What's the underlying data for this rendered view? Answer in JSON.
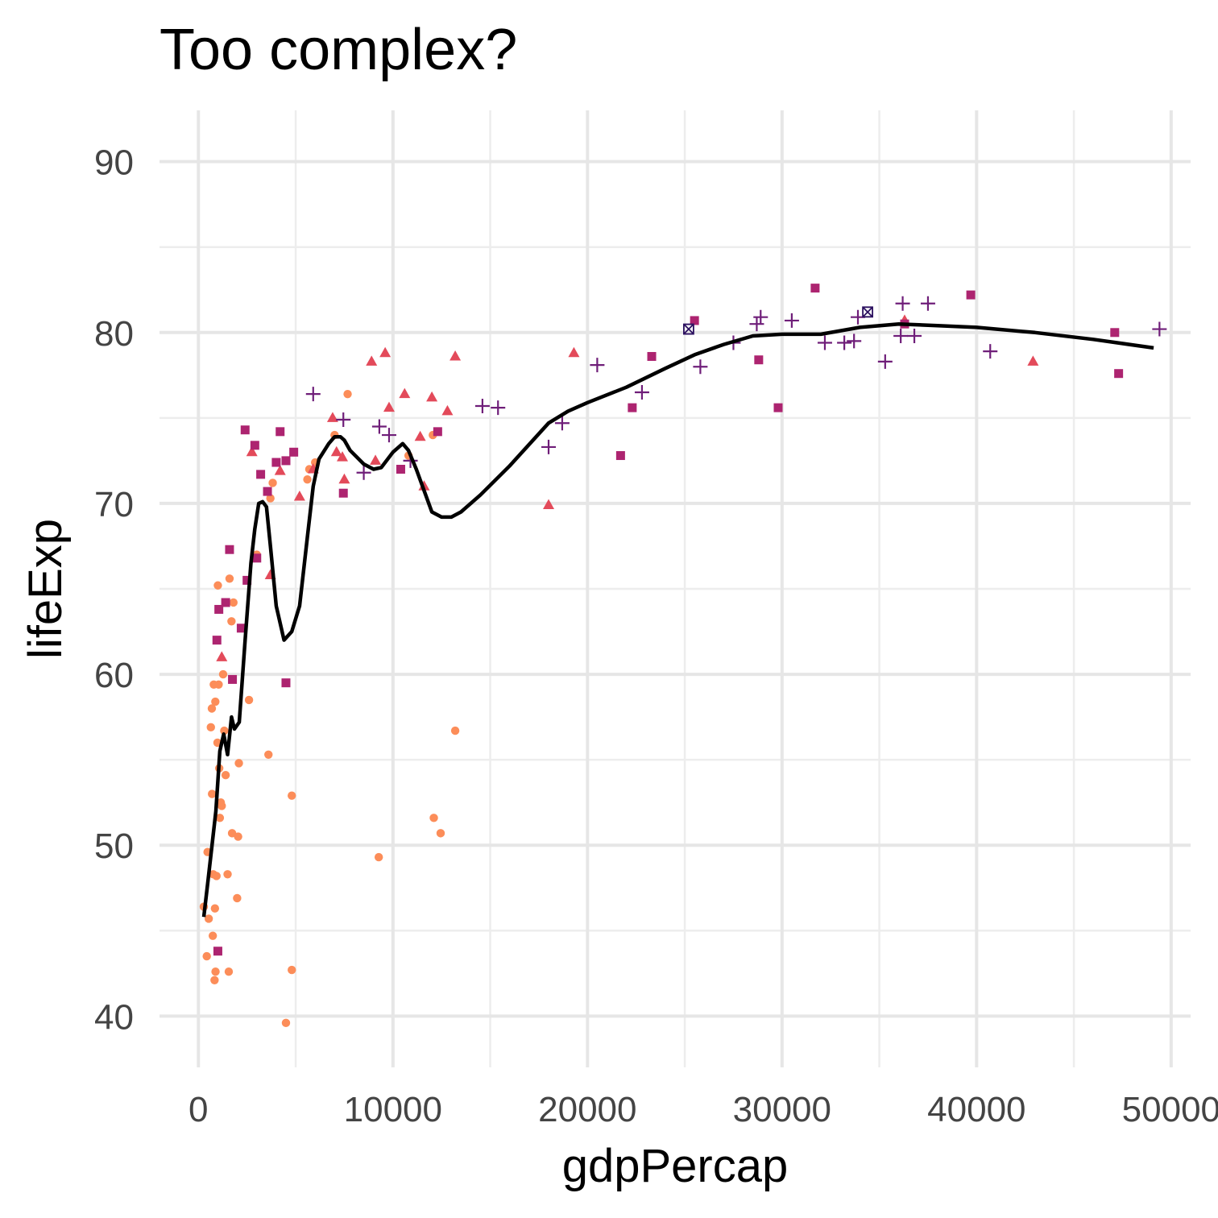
{
  "chart_data": {
    "type": "scatter",
    "title": "Too complex?",
    "xlabel": "gdpPercap",
    "ylabel": "lifeExp",
    "xlim": [
      -2000,
      51000
    ],
    "ylim": [
      37,
      93
    ],
    "x_ticks": [
      0,
      10000,
      20000,
      30000,
      40000,
      50000
    ],
    "x_tick_labels": [
      "0",
      "10000",
      "20000",
      "30000",
      "40000",
      "50000"
    ],
    "y_ticks": [
      40,
      50,
      60,
      70,
      80,
      90
    ],
    "y_tick_labels": [
      "40",
      "50",
      "60",
      "70",
      "80",
      "90"
    ],
    "grid": true,
    "legend": "none",
    "colors": {
      "circle": "#fc8d59",
      "triangle": "#e34a5a",
      "square": "#ad2470",
      "plus": "#6f1e79",
      "boxx": "#2c1160",
      "trend": "#000000"
    },
    "series": [
      {
        "marker": "circle",
        "points": [
          [
            277,
            46.4
          ],
          [
            430,
            43.5
          ],
          [
            470,
            49.6
          ],
          [
            530,
            45.7
          ],
          [
            640,
            56.9
          ],
          [
            690,
            58.0
          ],
          [
            700,
            53.0
          ],
          [
            740,
            44.7
          ],
          [
            760,
            48.3
          ],
          [
            790,
            59.4
          ],
          [
            830,
            42.1
          ],
          [
            850,
            46.3
          ],
          [
            870,
            58.4
          ],
          [
            880,
            42.6
          ],
          [
            930,
            48.2
          ],
          [
            980,
            56.0
          ],
          [
            1000,
            65.2
          ],
          [
            1040,
            59.4
          ],
          [
            1070,
            54.5
          ],
          [
            1100,
            51.6
          ],
          [
            1150,
            52.5
          ],
          [
            1200,
            52.3
          ],
          [
            1270,
            60.0
          ],
          [
            1330,
            56.7
          ],
          [
            1400,
            54.1
          ],
          [
            1500,
            48.3
          ],
          [
            1560,
            42.6
          ],
          [
            1600,
            65.6
          ],
          [
            1700,
            63.1
          ],
          [
            1730,
            50.7
          ],
          [
            1800,
            64.2
          ],
          [
            1990,
            46.9
          ],
          [
            2040,
            50.5
          ],
          [
            2080,
            54.8
          ],
          [
            2600,
            58.5
          ],
          [
            3000,
            67.0
          ],
          [
            3600,
            55.3
          ],
          [
            3700,
            70.3
          ],
          [
            3820,
            71.2
          ],
          [
            4500,
            39.6
          ],
          [
            4800,
            42.7
          ],
          [
            4800,
            52.9
          ],
          [
            5600,
            71.4
          ],
          [
            5700,
            72.0
          ],
          [
            6000,
            72.4
          ],
          [
            7000,
            74.0
          ],
          [
            7670,
            76.4
          ],
          [
            9270,
            49.3
          ],
          [
            10800,
            72.8
          ],
          [
            12050,
            74.0
          ],
          [
            12100,
            51.6
          ],
          [
            12450,
            50.7
          ],
          [
            13200,
            56.7
          ]
        ]
      },
      {
        "marker": "triangle",
        "points": [
          [
            1200,
            61.0
          ],
          [
            2750,
            73.0
          ],
          [
            3700,
            65.8
          ],
          [
            4200,
            71.9
          ],
          [
            5200,
            70.4
          ],
          [
            5900,
            72.0
          ],
          [
            6900,
            75.0
          ],
          [
            7100,
            73.0
          ],
          [
            7400,
            72.7
          ],
          [
            7500,
            71.4
          ],
          [
            8900,
            78.3
          ],
          [
            9100,
            72.5
          ],
          [
            9600,
            78.8
          ],
          [
            9800,
            75.6
          ],
          [
            10600,
            76.4
          ],
          [
            11400,
            73.9
          ],
          [
            11600,
            71.0
          ],
          [
            12000,
            76.2
          ],
          [
            12800,
            75.4
          ],
          [
            13200,
            78.6
          ],
          [
            18000,
            69.9
          ],
          [
            19300,
            78.8
          ],
          [
            36300,
            80.7
          ],
          [
            42900,
            78.3
          ]
        ]
      },
      {
        "marker": "square",
        "points": [
          [
            950,
            62.0
          ],
          [
            1000,
            43.8
          ],
          [
            1050,
            63.8
          ],
          [
            1400,
            64.2
          ],
          [
            1600,
            67.3
          ],
          [
            1750,
            59.7
          ],
          [
            2200,
            62.7
          ],
          [
            2400,
            74.3
          ],
          [
            2500,
            65.5
          ],
          [
            2900,
            73.4
          ],
          [
            3000,
            66.8
          ],
          [
            3200,
            71.7
          ],
          [
            3550,
            70.7
          ],
          [
            4000,
            72.4
          ],
          [
            4200,
            74.2
          ],
          [
            4500,
            59.5
          ],
          [
            4500,
            72.5
          ],
          [
            4900,
            73.0
          ],
          [
            7450,
            70.6
          ],
          [
            10400,
            72.0
          ],
          [
            12300,
            74.2
          ],
          [
            21700,
            72.8
          ],
          [
            22300,
            75.6
          ],
          [
            23300,
            78.6
          ],
          [
            25500,
            80.7
          ],
          [
            28800,
            78.4
          ],
          [
            29800,
            75.6
          ],
          [
            31700,
            82.6
          ],
          [
            36300,
            80.5
          ],
          [
            39700,
            82.2
          ],
          [
            47100,
            80.0
          ],
          [
            47300,
            77.6
          ]
        ]
      },
      {
        "marker": "plus",
        "points": [
          [
            5900,
            76.4
          ],
          [
            7450,
            74.9
          ],
          [
            8500,
            71.8
          ],
          [
            9300,
            74.5
          ],
          [
            9800,
            74.0
          ],
          [
            10900,
            72.5
          ],
          [
            14600,
            75.7
          ],
          [
            15400,
            75.6
          ],
          [
            18000,
            73.3
          ],
          [
            18700,
            74.7
          ],
          [
            20500,
            78.1
          ],
          [
            22800,
            76.5
          ],
          [
            25800,
            78.0
          ],
          [
            27500,
            79.4
          ],
          [
            28700,
            80.5
          ],
          [
            28900,
            80.9
          ],
          [
            30500,
            80.7
          ],
          [
            32200,
            79.4
          ],
          [
            33200,
            79.4
          ],
          [
            33700,
            79.5
          ],
          [
            33900,
            80.9
          ],
          [
            35300,
            78.3
          ],
          [
            36100,
            79.8
          ],
          [
            36200,
            81.7
          ],
          [
            36800,
            79.8
          ],
          [
            37500,
            81.7
          ],
          [
            40700,
            78.9
          ],
          [
            49400,
            80.2
          ]
        ]
      },
      {
        "marker": "boxx",
        "points": [
          [
            25200,
            80.2
          ],
          [
            34400,
            81.2
          ]
        ]
      }
    ],
    "trend_line": [
      [
        277,
        45.8
      ],
      [
        500,
        48.0
      ],
      [
        700,
        50.0
      ],
      [
        900,
        52.0
      ],
      [
        1100,
        55.5
      ],
      [
        1300,
        56.5
      ],
      [
        1500,
        55.3
      ],
      [
        1700,
        57.5
      ],
      [
        1850,
        56.8
      ],
      [
        2100,
        57.2
      ],
      [
        2400,
        62.0
      ],
      [
        2700,
        66.5
      ],
      [
        2900,
        68.5
      ],
      [
        3100,
        70.0
      ],
      [
        3300,
        70.1
      ],
      [
        3500,
        69.8
      ],
      [
        3700,
        67.5
      ],
      [
        4000,
        64.0
      ],
      [
        4400,
        62.0
      ],
      [
        4800,
        62.5
      ],
      [
        5200,
        64.0
      ],
      [
        5600,
        68.0
      ],
      [
        5900,
        71.0
      ],
      [
        6200,
        72.6
      ],
      [
        6700,
        73.5
      ],
      [
        7000,
        73.9
      ],
      [
        7300,
        73.9
      ],
      [
        7500,
        73.7
      ],
      [
        7800,
        73.1
      ],
      [
        8500,
        72.3
      ],
      [
        9000,
        72.0
      ],
      [
        9400,
        72.1
      ],
      [
        10000,
        73.0
      ],
      [
        10500,
        73.5
      ],
      [
        10800,
        73.1
      ],
      [
        11200,
        72.0
      ],
      [
        12000,
        69.5
      ],
      [
        12500,
        69.2
      ],
      [
        13000,
        69.2
      ],
      [
        13500,
        69.5
      ],
      [
        14500,
        70.5
      ],
      [
        16000,
        72.2
      ],
      [
        18000,
        74.7
      ],
      [
        19000,
        75.4
      ],
      [
        20000,
        75.9
      ],
      [
        22000,
        76.8
      ],
      [
        24000,
        77.9
      ],
      [
        25500,
        78.7
      ],
      [
        27000,
        79.3
      ],
      [
        28500,
        79.8
      ],
      [
        30000,
        79.9
      ],
      [
        32000,
        79.9
      ],
      [
        34000,
        80.3
      ],
      [
        36000,
        80.5
      ],
      [
        38000,
        80.4
      ],
      [
        40000,
        80.3
      ],
      [
        43000,
        80.0
      ],
      [
        46000,
        79.6
      ],
      [
        49100,
        79.1
      ]
    ]
  }
}
